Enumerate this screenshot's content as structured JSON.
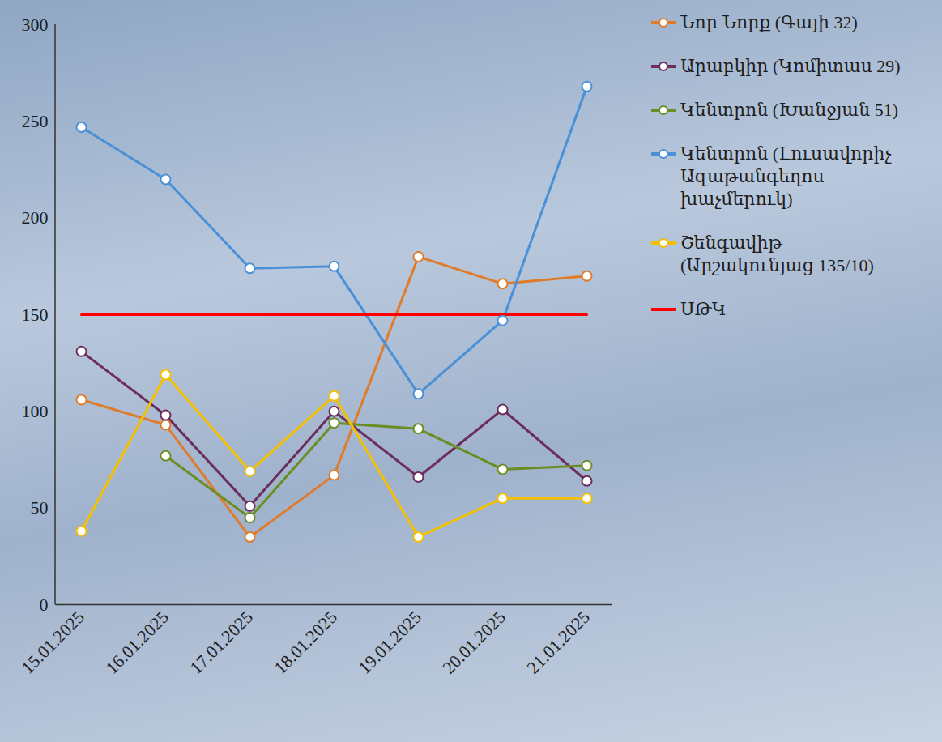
{
  "chart_data": {
    "type": "line",
    "categories": [
      "15.01.2025",
      "16.01.2025",
      "17.01.2025",
      "18.01.2025",
      "19.01.2025",
      "20.01.2025",
      "21.01.2025"
    ],
    "series": [
      {
        "name": "Նոր Նորք (Գայի 32)",
        "color": "#e07b2a",
        "marker": "circle",
        "values": [
          106,
          93,
          35,
          67,
          180,
          166,
          170
        ]
      },
      {
        "name": "Արաբկիր (Կոմիտաս 29)",
        "color": "#6b2d5c",
        "marker": "circle",
        "values": [
          131,
          98,
          51,
          100,
          66,
          101,
          64
        ]
      },
      {
        "name": "Կենտրոն (Խանջյան 51)",
        "color": "#6b8e23",
        "marker": "circle",
        "values": [
          null,
          77,
          45,
          94,
          91,
          70,
          72
        ]
      },
      {
        "name": "Կենտրոն (Լուսավորիչ Ազաթանգեղոս խաչմերուկ)",
        "color": "#4a90d9",
        "marker": "circle",
        "values": [
          247,
          220,
          174,
          175,
          109,
          147,
          268
        ]
      },
      {
        "name": "Շենգավիթ (Արշակունյաց 135/10)",
        "color": "#f5c000",
        "marker": "circle",
        "values": [
          38,
          119,
          69,
          108,
          35,
          55,
          55
        ]
      },
      {
        "name": "ՍԹԿ",
        "color": "#ff0000",
        "marker": "none",
        "values": [
          150,
          150,
          150,
          150,
          150,
          150,
          150
        ]
      }
    ],
    "ylim": [
      0,
      300
    ],
    "yticks": [
      0,
      50,
      100,
      150,
      200,
      250,
      300
    ],
    "grid": false,
    "legend": "right"
  }
}
